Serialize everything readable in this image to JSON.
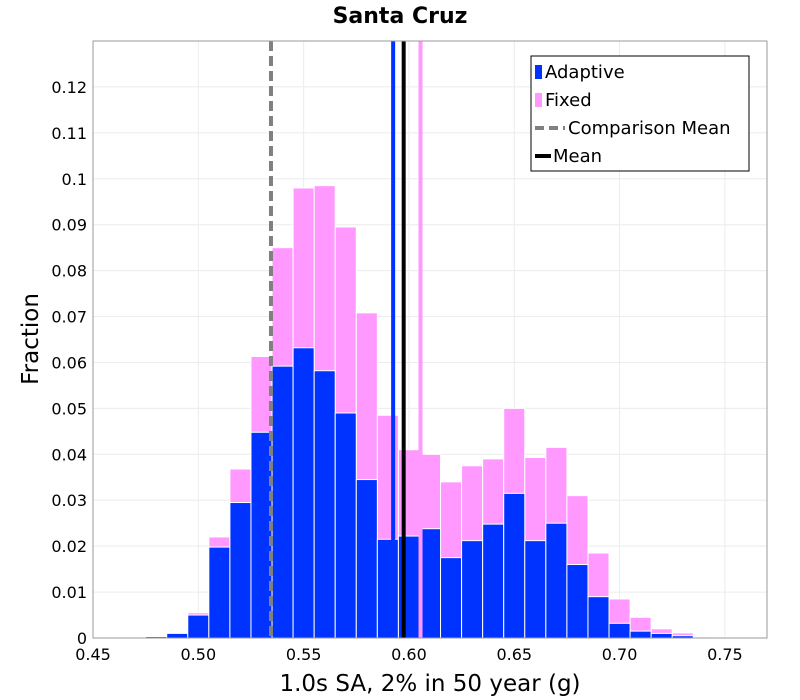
{
  "chart_data": {
    "type": "bar",
    "title": "Santa Cruz",
    "xlabel": "1.0s SA, 2% in 50 year (g)",
    "ylabel": "Fraction",
    "xlim": [
      0.45,
      0.77
    ],
    "ylim": [
      0,
      0.13
    ],
    "x_ticks": [
      "0.45",
      "0.50",
      "0.55",
      "0.60",
      "0.65",
      "0.70",
      "0.75"
    ],
    "y_ticks": [
      "0",
      "0.01",
      "0.02",
      "0.03",
      "0.04",
      "0.05",
      "0.06",
      "0.07",
      "0.08",
      "0.09",
      "0.1",
      "0.11",
      "0.12"
    ],
    "bin_width": 0.01,
    "bin_starts": [
      0.475,
      0.485,
      0.495,
      0.505,
      0.515,
      0.525,
      0.535,
      0.545,
      0.555,
      0.565,
      0.575,
      0.585,
      0.595,
      0.605,
      0.615,
      0.625,
      0.635,
      0.645,
      0.655,
      0.665,
      0.675,
      0.685,
      0.695,
      0.705,
      0.715,
      0.725,
      0.735,
      0.745
    ],
    "stacked": false,
    "series": [
      {
        "name": "Fixed",
        "color": "#ff99ff",
        "values": [
          0.0002,
          0.0008,
          0.0055,
          0.022,
          0.0368,
          0.0613,
          0.085,
          0.098,
          0.0985,
          0.0895,
          0.0708,
          0.0485,
          0.041,
          0.04,
          0.034,
          0.0375,
          0.039,
          0.05,
          0.0393,
          0.0415,
          0.031,
          0.0185,
          0.0085,
          0.0045,
          0.002,
          0.0011,
          0.0003,
          0.0002
        ]
      },
      {
        "name": "Adaptive",
        "color": "#0033ff",
        "values": [
          0.0003,
          0.001,
          0.005,
          0.0198,
          0.0295,
          0.0448,
          0.0592,
          0.0632,
          0.0582,
          0.049,
          0.0345,
          0.0215,
          0.0222,
          0.0238,
          0.0175,
          0.0212,
          0.0248,
          0.0315,
          0.0212,
          0.025,
          0.016,
          0.009,
          0.0032,
          0.0015,
          0.001,
          0.0005,
          0.0001,
          0.0001
        ]
      }
    ],
    "vertical_lines": [
      {
        "series": "Adaptive",
        "label": "Mean",
        "x": 0.5925,
        "color": "#0033ff",
        "style": "solid"
      },
      {
        "series": "Fixed",
        "label": "Mean",
        "x": 0.6055,
        "color": "#ff99ff",
        "style": "solid"
      },
      {
        "label": "Mean",
        "x": 0.5975,
        "color": "#000000",
        "style": "solid"
      },
      {
        "label": "Comparison Mean",
        "x": 0.5345,
        "color": "#808080",
        "style": "dashed"
      }
    ],
    "legend": {
      "position": "top-right",
      "entries": [
        {
          "label": "Adaptive",
          "color": "#0033ff",
          "kind": "patch"
        },
        {
          "label": "Fixed",
          "color": "#ff99ff",
          "kind": "patch"
        },
        {
          "label": "Comparison Mean",
          "color": "#808080",
          "kind": "dashed-line"
        },
        {
          "label": "Mean",
          "color": "#000000",
          "kind": "line"
        }
      ]
    },
    "grid": true
  }
}
